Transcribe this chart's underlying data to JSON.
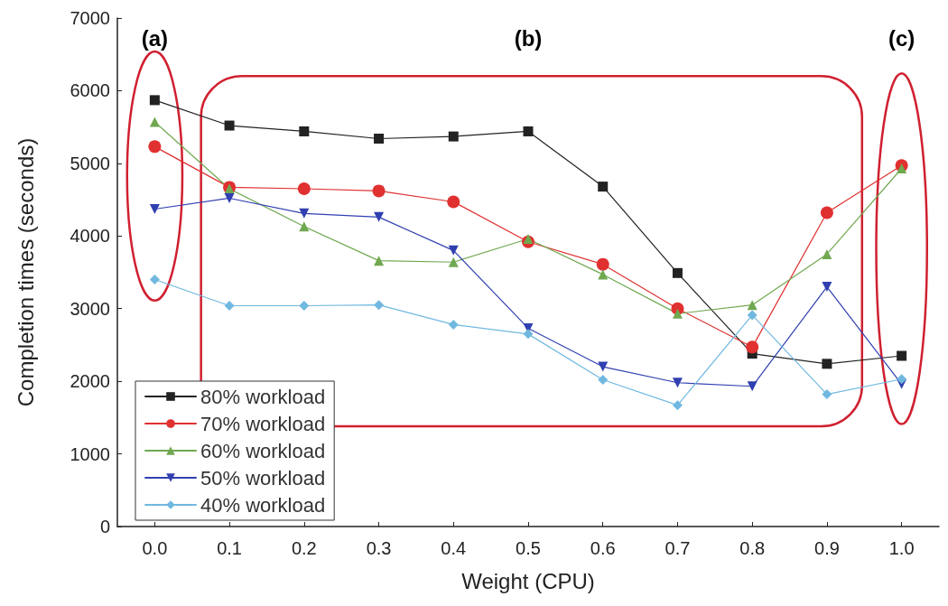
{
  "chart_data": {
    "type": "line",
    "xlabel": "Weight (CPU)",
    "ylabel": "Completion times (seconds)",
    "x": [
      0,
      0.1,
      0.2,
      0.3,
      0.4,
      0.5,
      0.6,
      0.7,
      0.8,
      0.9,
      1.0
    ],
    "xlim": [
      -0.05,
      1.05
    ],
    "xticks": [
      {
        "value": 0,
        "label": "0.0"
      },
      0.1,
      0.2,
      0.3,
      0.4,
      0.5,
      0.6,
      0.7,
      0.8,
      0.9,
      {
        "value": 1,
        "label": "1.0"
      }
    ],
    "ylim": [
      0,
      7000
    ],
    "yticks": [
      0,
      1000,
      2000,
      3000,
      4000,
      5000,
      6000,
      7000
    ],
    "grid": false,
    "legend": "bottom left",
    "line_style": "solid",
    "series": [
      {
        "name": "80% workload",
        "color": "#222222",
        "marker": "square",
        "values": [
          5870,
          5520,
          5440,
          5340,
          5370,
          5440,
          4680,
          3490,
          2380,
          2240,
          2350
        ]
      },
      {
        "name": "70% workload",
        "color": "#e03030",
        "marker": "circle",
        "values": [
          5230,
          4670,
          4650,
          4620,
          4470,
          3920,
          3610,
          3000,
          2470,
          4320,
          4970
        ]
      },
      {
        "name": "60% workload",
        "color": "#70a850",
        "marker": "triangle",
        "values": [
          5570,
          4650,
          4130,
          3660,
          3640,
          3960,
          3470,
          2930,
          3050,
          3750,
          4930
        ]
      },
      {
        "name": "50% workload",
        "color": "#3040b0",
        "marker": "triangle-down",
        "values": [
          4370,
          4520,
          4310,
          4260,
          3800,
          2730,
          2200,
          1980,
          1930,
          3300,
          1960
        ]
      },
      {
        "name": "40% workload",
        "color": "#70b8e0",
        "marker": "diamond",
        "values": [
          3400,
          3040,
          3040,
          3050,
          2780,
          2650,
          2020,
          1670,
          2910,
          1820,
          2030
        ]
      }
    ],
    "annotations": [
      "(a)",
      "(b)",
      "(c)"
    ]
  }
}
